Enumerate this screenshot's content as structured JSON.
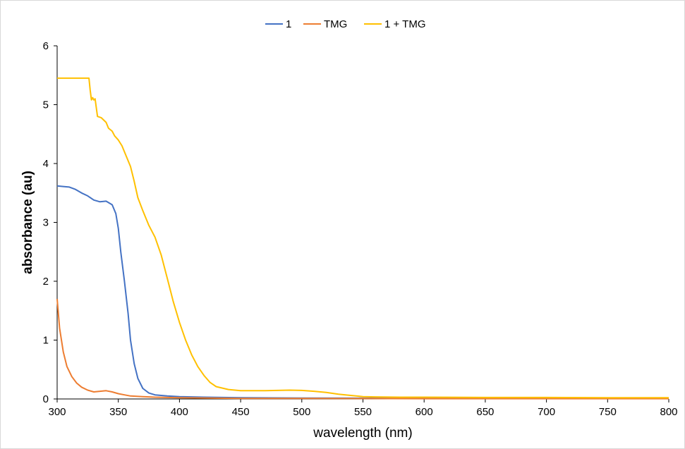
{
  "chart_data": {
    "type": "line",
    "title": "",
    "xlabel": "wavelength (nm)",
    "ylabel": "absorbance (au)",
    "xlim": [
      300,
      800
    ],
    "ylim": [
      0,
      6
    ],
    "xticks": [
      300,
      350,
      400,
      450,
      500,
      550,
      600,
      650,
      700,
      750,
      800
    ],
    "yticks": [
      0,
      1,
      2,
      3,
      4,
      5,
      6
    ],
    "grid": false,
    "legend_position": "top-center",
    "series": [
      {
        "name": "1",
        "color": "#4472C4",
        "points": [
          [
            300,
            3.62
          ],
          [
            305,
            3.61
          ],
          [
            310,
            3.6
          ],
          [
            315,
            3.56
          ],
          [
            320,
            3.5
          ],
          [
            325,
            3.45
          ],
          [
            330,
            3.38
          ],
          [
            335,
            3.35
          ],
          [
            340,
            3.36
          ],
          [
            345,
            3.3
          ],
          [
            348,
            3.15
          ],
          [
            350,
            2.9
          ],
          [
            352,
            2.5
          ],
          [
            355,
            2.0
          ],
          [
            358,
            1.45
          ],
          [
            360,
            1.0
          ],
          [
            363,
            0.6
          ],
          [
            366,
            0.35
          ],
          [
            370,
            0.18
          ],
          [
            375,
            0.1
          ],
          [
            380,
            0.07
          ],
          [
            390,
            0.05
          ],
          [
            400,
            0.04
          ],
          [
            420,
            0.03
          ],
          [
            450,
            0.02
          ],
          [
            500,
            0.015
          ],
          [
            600,
            0.01
          ],
          [
            700,
            0.01
          ],
          [
            800,
            0.01
          ]
        ]
      },
      {
        "name": "TMG",
        "color": "#ED7D31",
        "points": [
          [
            300,
            1.7
          ],
          [
            302,
            1.2
          ],
          [
            305,
            0.8
          ],
          [
            308,
            0.55
          ],
          [
            312,
            0.38
          ],
          [
            316,
            0.27
          ],
          [
            320,
            0.2
          ],
          [
            325,
            0.15
          ],
          [
            330,
            0.12
          ],
          [
            335,
            0.13
          ],
          [
            340,
            0.14
          ],
          [
            345,
            0.12
          ],
          [
            350,
            0.09
          ],
          [
            355,
            0.07
          ],
          [
            360,
            0.05
          ],
          [
            370,
            0.04
          ],
          [
            380,
            0.03
          ],
          [
            400,
            0.02
          ],
          [
            450,
            0.01
          ],
          [
            500,
            0.01
          ],
          [
            600,
            0.005
          ],
          [
            700,
            0.005
          ],
          [
            800,
            0.005
          ]
        ]
      },
      {
        "name": "1 + TMG",
        "color": "#FFC000",
        "points": [
          [
            300,
            5.45
          ],
          [
            310,
            5.45
          ],
          [
            320,
            5.45
          ],
          [
            326,
            5.45
          ],
          [
            327,
            5.25
          ],
          [
            328,
            5.08
          ],
          [
            329,
            5.12
          ],
          [
            330,
            5.08
          ],
          [
            331,
            5.1
          ],
          [
            332,
            4.95
          ],
          [
            333,
            4.8
          ],
          [
            336,
            4.78
          ],
          [
            340,
            4.7
          ],
          [
            342,
            4.6
          ],
          [
            345,
            4.55
          ],
          [
            347,
            4.47
          ],
          [
            350,
            4.4
          ],
          [
            353,
            4.3
          ],
          [
            356,
            4.15
          ],
          [
            360,
            3.95
          ],
          [
            363,
            3.7
          ],
          [
            366,
            3.42
          ],
          [
            370,
            3.2
          ],
          [
            375,
            2.95
          ],
          [
            380,
            2.75
          ],
          [
            385,
            2.45
          ],
          [
            390,
            2.05
          ],
          [
            395,
            1.65
          ],
          [
            400,
            1.3
          ],
          [
            405,
            1.0
          ],
          [
            410,
            0.75
          ],
          [
            415,
            0.55
          ],
          [
            420,
            0.4
          ],
          [
            425,
            0.28
          ],
          [
            430,
            0.21
          ],
          [
            440,
            0.16
          ],
          [
            450,
            0.14
          ],
          [
            460,
            0.14
          ],
          [
            470,
            0.14
          ],
          [
            480,
            0.145
          ],
          [
            490,
            0.15
          ],
          [
            500,
            0.145
          ],
          [
            510,
            0.13
          ],
          [
            520,
            0.11
          ],
          [
            530,
            0.08
          ],
          [
            540,
            0.06
          ],
          [
            550,
            0.04
          ],
          [
            560,
            0.035
          ],
          [
            580,
            0.03
          ],
          [
            600,
            0.03
          ],
          [
            650,
            0.025
          ],
          [
            700,
            0.025
          ],
          [
            750,
            0.02
          ],
          [
            800,
            0.02
          ]
        ]
      }
    ]
  }
}
